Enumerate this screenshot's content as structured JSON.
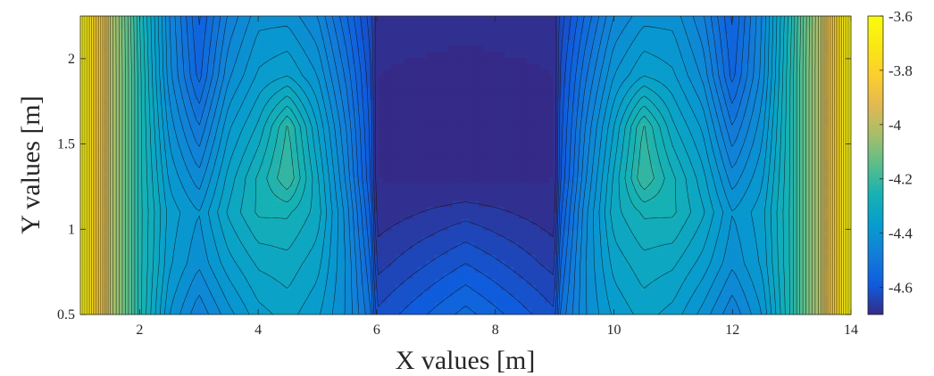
{
  "chart_data": {
    "type": "heatmap",
    "subtype": "filled-contour",
    "title": "",
    "xlabel": "X values [m]",
    "ylabel": "Y values [m]",
    "xlim": [
      1,
      14
    ],
    "ylim": [
      0.5,
      2.25
    ],
    "x_ticks": [
      "2",
      "4",
      "6",
      "8",
      "10",
      "12",
      "14"
    ],
    "x_tick_values": [
      2,
      4,
      6,
      8,
      10,
      12,
      14
    ],
    "y_ticks": [
      "0.5",
      "1",
      "1.5",
      "2"
    ],
    "y_tick_values": [
      0.5,
      1,
      1.5,
      2
    ],
    "colorbar": {
      "colormap": "parula",
      "range": [
        -4.7,
        -3.6
      ],
      "ticks": [
        "-3.6",
        "-3.8",
        "-4",
        "-4.2",
        "-4.4",
        "-4.6"
      ],
      "tick_values": [
        -3.6,
        -3.8,
        -4.0,
        -4.2,
        -4.4,
        -4.6
      ]
    },
    "grid": false,
    "x": [
      1.0,
      1.5,
      2.0,
      2.5,
      3.0,
      3.5,
      4.0,
      4.5,
      5.0,
      5.5,
      5.9,
      6.0,
      7.5,
      9.0,
      9.1,
      9.5,
      10.0,
      10.5,
      11.0,
      11.5,
      12.0,
      12.5,
      13.0,
      13.5,
      14.0
    ],
    "y": [
      0.5,
      0.8,
      1.1,
      1.3,
      1.6,
      1.9,
      2.25
    ],
    "z": [
      [
        -3.6,
        -4.0,
        -4.24,
        -4.4,
        -4.47,
        -4.41,
        -4.36,
        -4.34,
        -4.37,
        -4.43,
        -4.52,
        -4.62,
        -4.54,
        -4.62,
        -4.52,
        -4.43,
        -4.37,
        -4.34,
        -4.36,
        -4.41,
        -4.47,
        -4.4,
        -4.24,
        -4.0,
        -3.6
      ],
      [
        -3.6,
        -4.0,
        -4.24,
        -4.37,
        -4.42,
        -4.36,
        -4.32,
        -4.31,
        -4.34,
        -4.43,
        -4.55,
        -4.66,
        -4.6,
        -4.66,
        -4.55,
        -4.43,
        -4.34,
        -4.31,
        -4.32,
        -4.36,
        -4.42,
        -4.37,
        -4.24,
        -4.0,
        -3.6
      ],
      [
        -3.6,
        -4.0,
        -4.24,
        -4.36,
        -4.4,
        -4.32,
        -4.27,
        -4.27,
        -4.31,
        -4.44,
        -4.58,
        -4.69,
        -4.66,
        -4.69,
        -4.58,
        -4.44,
        -4.31,
        -4.27,
        -4.27,
        -4.32,
        -4.4,
        -4.36,
        -4.24,
        -4.0,
        -3.6
      ],
      [
        -3.6,
        -4.0,
        -4.24,
        -4.38,
        -4.44,
        -4.34,
        -4.27,
        -4.2,
        -4.32,
        -4.46,
        -4.6,
        -4.7,
        -4.71,
        -4.7,
        -4.6,
        -4.46,
        -4.32,
        -4.2,
        -4.27,
        -4.34,
        -4.44,
        -4.38,
        -4.24,
        -4.0,
        -3.6
      ],
      [
        -3.6,
        -4.0,
        -4.24,
        -4.41,
        -4.5,
        -4.38,
        -4.32,
        -4.22,
        -4.35,
        -4.48,
        -4.61,
        -4.7,
        -4.72,
        -4.7,
        -4.61,
        -4.48,
        -4.35,
        -4.22,
        -4.32,
        -4.38,
        -4.5,
        -4.41,
        -4.24,
        -4.0,
        -3.6
      ],
      [
        -3.6,
        -4.0,
        -4.24,
        -4.44,
        -4.56,
        -4.43,
        -4.37,
        -4.35,
        -4.4,
        -4.51,
        -4.62,
        -4.7,
        -4.71,
        -4.7,
        -4.62,
        -4.51,
        -4.4,
        -4.35,
        -4.37,
        -4.43,
        -4.56,
        -4.44,
        -4.24,
        -4.0,
        -3.6
      ],
      [
        -3.6,
        -4.0,
        -4.25,
        -4.45,
        -4.58,
        -4.47,
        -4.41,
        -4.41,
        -4.45,
        -4.55,
        -4.64,
        -4.69,
        -4.69,
        -4.69,
        -4.64,
        -4.55,
        -4.45,
        -4.41,
        -4.41,
        -4.47,
        -4.58,
        -4.45,
        -4.25,
        -4.0,
        -3.6
      ]
    ]
  }
}
